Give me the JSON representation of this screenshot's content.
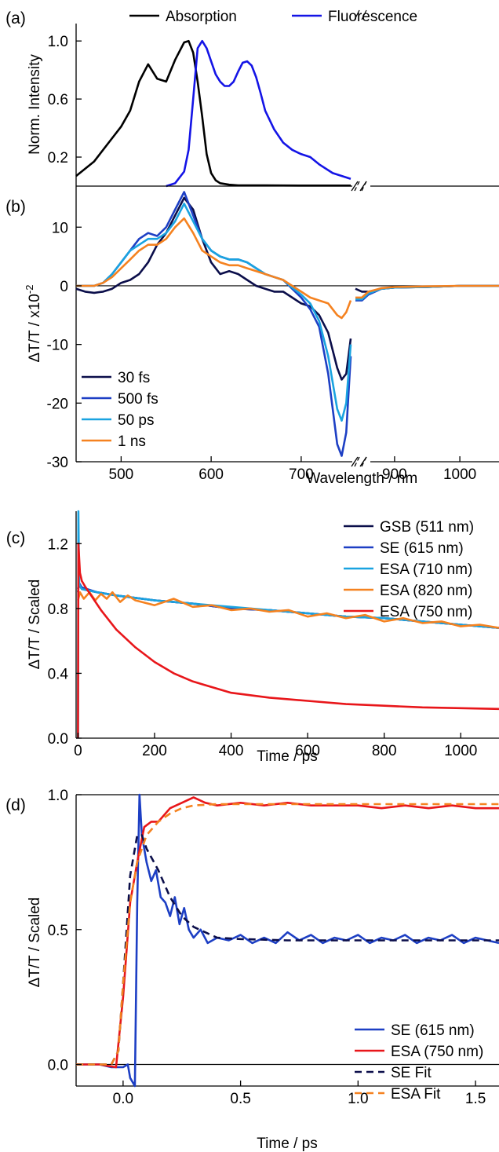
{
  "colors": {
    "black": "#000000",
    "navy": "#0b0e4a",
    "blue": "#1d3fc4",
    "brightblue": "#1414e6",
    "lightblue": "#1aa3e0",
    "orange": "#f58220",
    "red": "#e8161a"
  },
  "chart_data": [
    {
      "panel": "(a)",
      "type": "line",
      "ylabel": "Norm. Intensity",
      "xlabel": "",
      "x_axis": "broken",
      "xlim": [
        450,
        1060
      ],
      "ylim": [
        0,
        1.12
      ],
      "yticks": [
        "0.2",
        "0.6",
        "1.0"
      ],
      "legend_position": "top",
      "series": [
        {
          "name": "Absorption",
          "color": "#000000",
          "x": [
            450,
            470,
            490,
            500,
            510,
            520,
            530,
            540,
            550,
            560,
            570,
            575,
            580,
            585,
            590,
            595,
            600,
            605,
            610,
            620,
            630,
            640,
            660,
            700,
            755
          ],
          "y": [
            0.07,
            0.17,
            0.33,
            0.41,
            0.52,
            0.72,
            0.84,
            0.74,
            0.72,
            0.87,
            0.99,
            1.0,
            0.92,
            0.72,
            0.48,
            0.22,
            0.09,
            0.04,
            0.02,
            0.01,
            0.005,
            0.005,
            0.005,
            0.004,
            0.004
          ]
        },
        {
          "name": "Fluorescence",
          "color": "#1414e6",
          "x": [
            550,
            560,
            570,
            575,
            580,
            585,
            590,
            595,
            600,
            605,
            610,
            615,
            620,
            625,
            630,
            635,
            640,
            645,
            650,
            655,
            660,
            670,
            680,
            690,
            700,
            710,
            720,
            735,
            755
          ],
          "y": [
            0.0,
            0.02,
            0.1,
            0.25,
            0.6,
            0.95,
            1.0,
            0.95,
            0.86,
            0.77,
            0.72,
            0.69,
            0.69,
            0.72,
            0.79,
            0.85,
            0.86,
            0.83,
            0.75,
            0.64,
            0.52,
            0.39,
            0.3,
            0.25,
            0.22,
            0.2,
            0.15,
            0.09,
            0.05
          ]
        }
      ]
    },
    {
      "panel": "(b)",
      "type": "line",
      "ylabel": "ΔT/T / x10",
      "ylabel_exp": "-2",
      "xlabel": "Wavelength / nm",
      "x_axis": "broken",
      "xlim": [
        450,
        1060
      ],
      "ylim": [
        -30,
        17
      ],
      "xticks": [
        "500",
        "600",
        "700",
        "900",
        "1000"
      ],
      "yticks": [
        "-30",
        "-20",
        "-10",
        "0",
        "10"
      ],
      "legend_position": "bottom-left",
      "series": [
        {
          "name": "30 fs",
          "color": "#0b0e4a",
          "x": [
            450,
            460,
            470,
            480,
            490,
            500,
            510,
            520,
            530,
            540,
            550,
            560,
            570,
            580,
            590,
            600,
            610,
            620,
            630,
            640,
            650,
            660,
            670,
            680,
            690,
            700,
            710,
            720,
            730,
            740,
            745,
            750,
            755,
            760,
            840,
            850,
            860,
            870,
            880,
            900,
            950,
            1000,
            1060
          ],
          "y": [
            -0.5,
            -1,
            -1.2,
            -1,
            -0.5,
            0.5,
            1,
            2,
            4,
            7,
            9,
            12,
            15,
            13,
            8,
            4,
            2,
            2.5,
            2,
            1,
            0,
            -0.5,
            -1,
            -1,
            -2,
            -3,
            -3.5,
            -5,
            -8,
            -14,
            -16,
            -15,
            -9,
            -5,
            -0.5,
            -1,
            -1,
            -0.8,
            -0.5,
            -0.3,
            -0.2,
            0,
            0
          ]
        },
        {
          "name": "500 fs",
          "color": "#1d3fc4",
          "x": [
            450,
            460,
            470,
            480,
            490,
            500,
            510,
            520,
            530,
            540,
            550,
            560,
            570,
            580,
            590,
            600,
            610,
            620,
            630,
            640,
            650,
            660,
            670,
            680,
            690,
            700,
            710,
            720,
            730,
            740,
            745,
            750,
            755,
            760,
            840,
            850,
            860,
            870,
            880,
            900,
            950,
            1000,
            1060
          ],
          "y": [
            0,
            0,
            0,
            0.5,
            2,
            4,
            6,
            8,
            9,
            8.5,
            10,
            13,
            16,
            12,
            8,
            6,
            5,
            4.5,
            4.5,
            4,
            3,
            2,
            1.5,
            1,
            -0.5,
            -2,
            -4,
            -7,
            -15,
            -27,
            -29,
            -25,
            -12,
            -5,
            -2.5,
            -2.5,
            -1.5,
            -1,
            -0.5,
            -0.3,
            -0.2,
            0,
            0
          ]
        },
        {
          "name": "50 ps",
          "color": "#1aa3e0",
          "x": [
            450,
            460,
            470,
            480,
            490,
            500,
            510,
            520,
            530,
            540,
            550,
            560,
            570,
            580,
            590,
            600,
            610,
            620,
            630,
            640,
            650,
            660,
            670,
            680,
            690,
            700,
            710,
            720,
            730,
            740,
            745,
            750,
            755,
            760,
            840,
            850,
            860,
            870,
            880,
            900,
            950,
            1000,
            1060
          ],
          "y": [
            0,
            0,
            0,
            0.5,
            2,
            4,
            6,
            7,
            8,
            8,
            9,
            11,
            14,
            11,
            8,
            6,
            5,
            4.5,
            4.5,
            4,
            3,
            2,
            1.5,
            1,
            -0.3,
            -1.5,
            -3,
            -6,
            -12,
            -21,
            -23,
            -20,
            -10,
            -5,
            -2.3,
            -2.3,
            -1.3,
            -0.9,
            -0.5,
            -0.3,
            -0.2,
            0,
            0
          ]
        },
        {
          "name": "1 ns",
          "color": "#f58220",
          "x": [
            450,
            460,
            470,
            480,
            490,
            500,
            510,
            520,
            530,
            540,
            550,
            560,
            570,
            580,
            590,
            600,
            610,
            620,
            630,
            640,
            650,
            660,
            670,
            680,
            690,
            700,
            710,
            720,
            730,
            740,
            745,
            750,
            755,
            760,
            840,
            850,
            860,
            870,
            880,
            900,
            950,
            1000,
            1060
          ],
          "y": [
            0,
            0,
            0,
            0.5,
            1.5,
            3,
            4.5,
            6,
            7,
            7,
            8,
            10,
            11.5,
            9,
            6,
            5,
            4,
            3.5,
            3.5,
            3,
            2.5,
            2,
            1.5,
            1,
            0,
            -1,
            -2,
            -2.5,
            -3,
            -5,
            -5.5,
            -4.5,
            -2.5,
            -1.5,
            -2,
            -2,
            -1,
            -0.7,
            -0.4,
            -0.2,
            -0.1,
            0,
            0
          ]
        }
      ]
    },
    {
      "panel": "(c)",
      "type": "line",
      "ylabel": "ΔT/T / Scaled",
      "xlabel": "Time / ps",
      "xlim": [
        -5,
        1100
      ],
      "ylim": [
        0,
        1.4
      ],
      "xticks": [
        "0",
        "200",
        "400",
        "600",
        "800",
        "1000"
      ],
      "yticks": [
        "0.0",
        "0.4",
        "0.8",
        "1.2"
      ],
      "legend_position": "top-right",
      "series": [
        {
          "name": "GSB (511 nm)",
          "color": "#0b0e4a",
          "x": [
            0,
            2,
            10,
            50,
            100,
            200,
            300,
            400,
            500,
            600,
            700,
            800,
            900,
            1000,
            1100
          ],
          "y": [
            0.9,
            0.95,
            0.92,
            0.9,
            0.88,
            0.85,
            0.83,
            0.8,
            0.79,
            0.77,
            0.75,
            0.74,
            0.72,
            0.7,
            0.68
          ]
        },
        {
          "name": "SE (615 nm)",
          "color": "#1d3fc4",
          "x": [
            0,
            2,
            10,
            50,
            100,
            200,
            300,
            400,
            500,
            600,
            700,
            800,
            900,
            1000,
            1100
          ],
          "y": [
            0.92,
            0.96,
            0.93,
            0.9,
            0.88,
            0.85,
            0.83,
            0.8,
            0.79,
            0.77,
            0.75,
            0.74,
            0.72,
            0.7,
            0.68
          ]
        },
        {
          "name": "ESA (710 nm)",
          "color": "#1aa3e0",
          "x": [
            0,
            1,
            3,
            10,
            50,
            100,
            200,
            300,
            400,
            500,
            600,
            700,
            800,
            900,
            1000,
            1100
          ],
          "y": [
            0,
            1.4,
            0.95,
            0.92,
            0.9,
            0.88,
            0.85,
            0.83,
            0.81,
            0.79,
            0.77,
            0.75,
            0.74,
            0.72,
            0.7,
            0.68
          ]
        },
        {
          "name": "ESA (820 nm)",
          "color": "#f58220",
          "x": [
            0,
            5,
            15,
            30,
            45,
            60,
            75,
            90,
            110,
            130,
            150,
            200,
            250,
            300,
            350,
            400,
            450,
            500,
            550,
            600,
            650,
            700,
            750,
            800,
            850,
            900,
            950,
            1000,
            1050,
            1100
          ],
          "y": [
            0.85,
            0.9,
            0.86,
            0.9,
            0.85,
            0.89,
            0.86,
            0.9,
            0.84,
            0.88,
            0.85,
            0.82,
            0.86,
            0.81,
            0.82,
            0.79,
            0.8,
            0.78,
            0.79,
            0.75,
            0.77,
            0.74,
            0.76,
            0.72,
            0.74,
            0.71,
            0.72,
            0.69,
            0.7,
            0.68
          ]
        },
        {
          "name": "ESA (750 nm)",
          "color": "#e8161a",
          "x": [
            0,
            1,
            5,
            10,
            20,
            40,
            60,
            100,
            150,
            200,
            250,
            300,
            400,
            500,
            600,
            700,
            800,
            900,
            1000,
            1100
          ],
          "y": [
            0,
            1.2,
            1.02,
            0.97,
            0.93,
            0.86,
            0.79,
            0.67,
            0.56,
            0.47,
            0.4,
            0.35,
            0.28,
            0.25,
            0.23,
            0.21,
            0.2,
            0.19,
            0.185,
            0.18
          ]
        }
      ]
    },
    {
      "panel": "(d)",
      "type": "line",
      "ylabel": "ΔT/T / Scaled",
      "xlabel": "Time / ps",
      "xlim": [
        -0.2,
        1.6
      ],
      "ylim": [
        -0.08,
        1.0
      ],
      "xticks": [
        "0.0",
        "0.5",
        "1.0",
        "1.5"
      ],
      "yticks": [
        "0.0",
        "0.5",
        "1.0"
      ],
      "legend_position": "bottom-right",
      "series": [
        {
          "name": "SE (615 nm)",
          "color": "#1d3fc4",
          "x": [
            -0.2,
            -0.1,
            -0.05,
            0.0,
            0.02,
            0.03,
            0.05,
            0.06,
            0.07,
            0.08,
            0.1,
            0.12,
            0.14,
            0.16,
            0.18,
            0.2,
            0.22,
            0.24,
            0.26,
            0.28,
            0.3,
            0.33,
            0.36,
            0.4,
            0.45,
            0.5,
            0.55,
            0.6,
            0.65,
            0.7,
            0.75,
            0.8,
            0.85,
            0.9,
            0.95,
            1.0,
            1.05,
            1.1,
            1.15,
            1.2,
            1.25,
            1.3,
            1.35,
            1.4,
            1.45,
            1.5,
            1.55,
            1.6
          ],
          "y": [
            0,
            0,
            -0.01,
            -0.01,
            0,
            -0.05,
            -0.08,
            0.6,
            1.0,
            0.85,
            0.75,
            0.68,
            0.72,
            0.62,
            0.6,
            0.55,
            0.62,
            0.52,
            0.58,
            0.5,
            0.47,
            0.5,
            0.45,
            0.47,
            0.46,
            0.48,
            0.45,
            0.47,
            0.45,
            0.49,
            0.46,
            0.48,
            0.45,
            0.47,
            0.46,
            0.48,
            0.45,
            0.47,
            0.46,
            0.48,
            0.45,
            0.47,
            0.46,
            0.48,
            0.45,
            0.47,
            0.46,
            0.45
          ]
        },
        {
          "name": "ESA (750 nm)",
          "color": "#e8161a",
          "x": [
            -0.2,
            -0.1,
            -0.03,
            0.0,
            0.03,
            0.06,
            0.09,
            0.12,
            0.15,
            0.2,
            0.25,
            0.3,
            0.35,
            0.4,
            0.5,
            0.6,
            0.7,
            0.8,
            0.9,
            1.0,
            1.1,
            1.2,
            1.3,
            1.4,
            1.5,
            1.6
          ],
          "y": [
            0,
            0,
            -0.01,
            0.25,
            0.6,
            0.75,
            0.88,
            0.9,
            0.9,
            0.95,
            0.97,
            0.99,
            0.97,
            0.96,
            0.97,
            0.96,
            0.97,
            0.96,
            0.96,
            0.96,
            0.95,
            0.96,
            0.95,
            0.96,
            0.95,
            0.95
          ]
        },
        {
          "name": "SE Fit",
          "color": "#0b0e4a",
          "dashed": true,
          "x": [
            -0.2,
            -0.05,
            -0.02,
            0.0,
            0.03,
            0.06,
            0.08,
            0.1,
            0.15,
            0.2,
            0.25,
            0.3,
            0.4,
            0.5,
            0.7,
            1.0,
            1.3,
            1.6
          ],
          "y": [
            0,
            0,
            0.05,
            0.3,
            0.7,
            0.85,
            0.85,
            0.8,
            0.72,
            0.62,
            0.55,
            0.51,
            0.47,
            0.465,
            0.46,
            0.46,
            0.46,
            0.46
          ]
        },
        {
          "name": "ESA Fit",
          "color": "#f58220",
          "dashed": true,
          "x": [
            -0.2,
            -0.05,
            -0.02,
            0.0,
            0.03,
            0.06,
            0.1,
            0.15,
            0.2,
            0.25,
            0.3,
            0.4,
            0.5,
            0.8,
            1.2,
            1.6
          ],
          "y": [
            0,
            0,
            0.05,
            0.3,
            0.6,
            0.75,
            0.85,
            0.9,
            0.93,
            0.95,
            0.96,
            0.965,
            0.965,
            0.965,
            0.965,
            0.965
          ]
        }
      ]
    }
  ]
}
